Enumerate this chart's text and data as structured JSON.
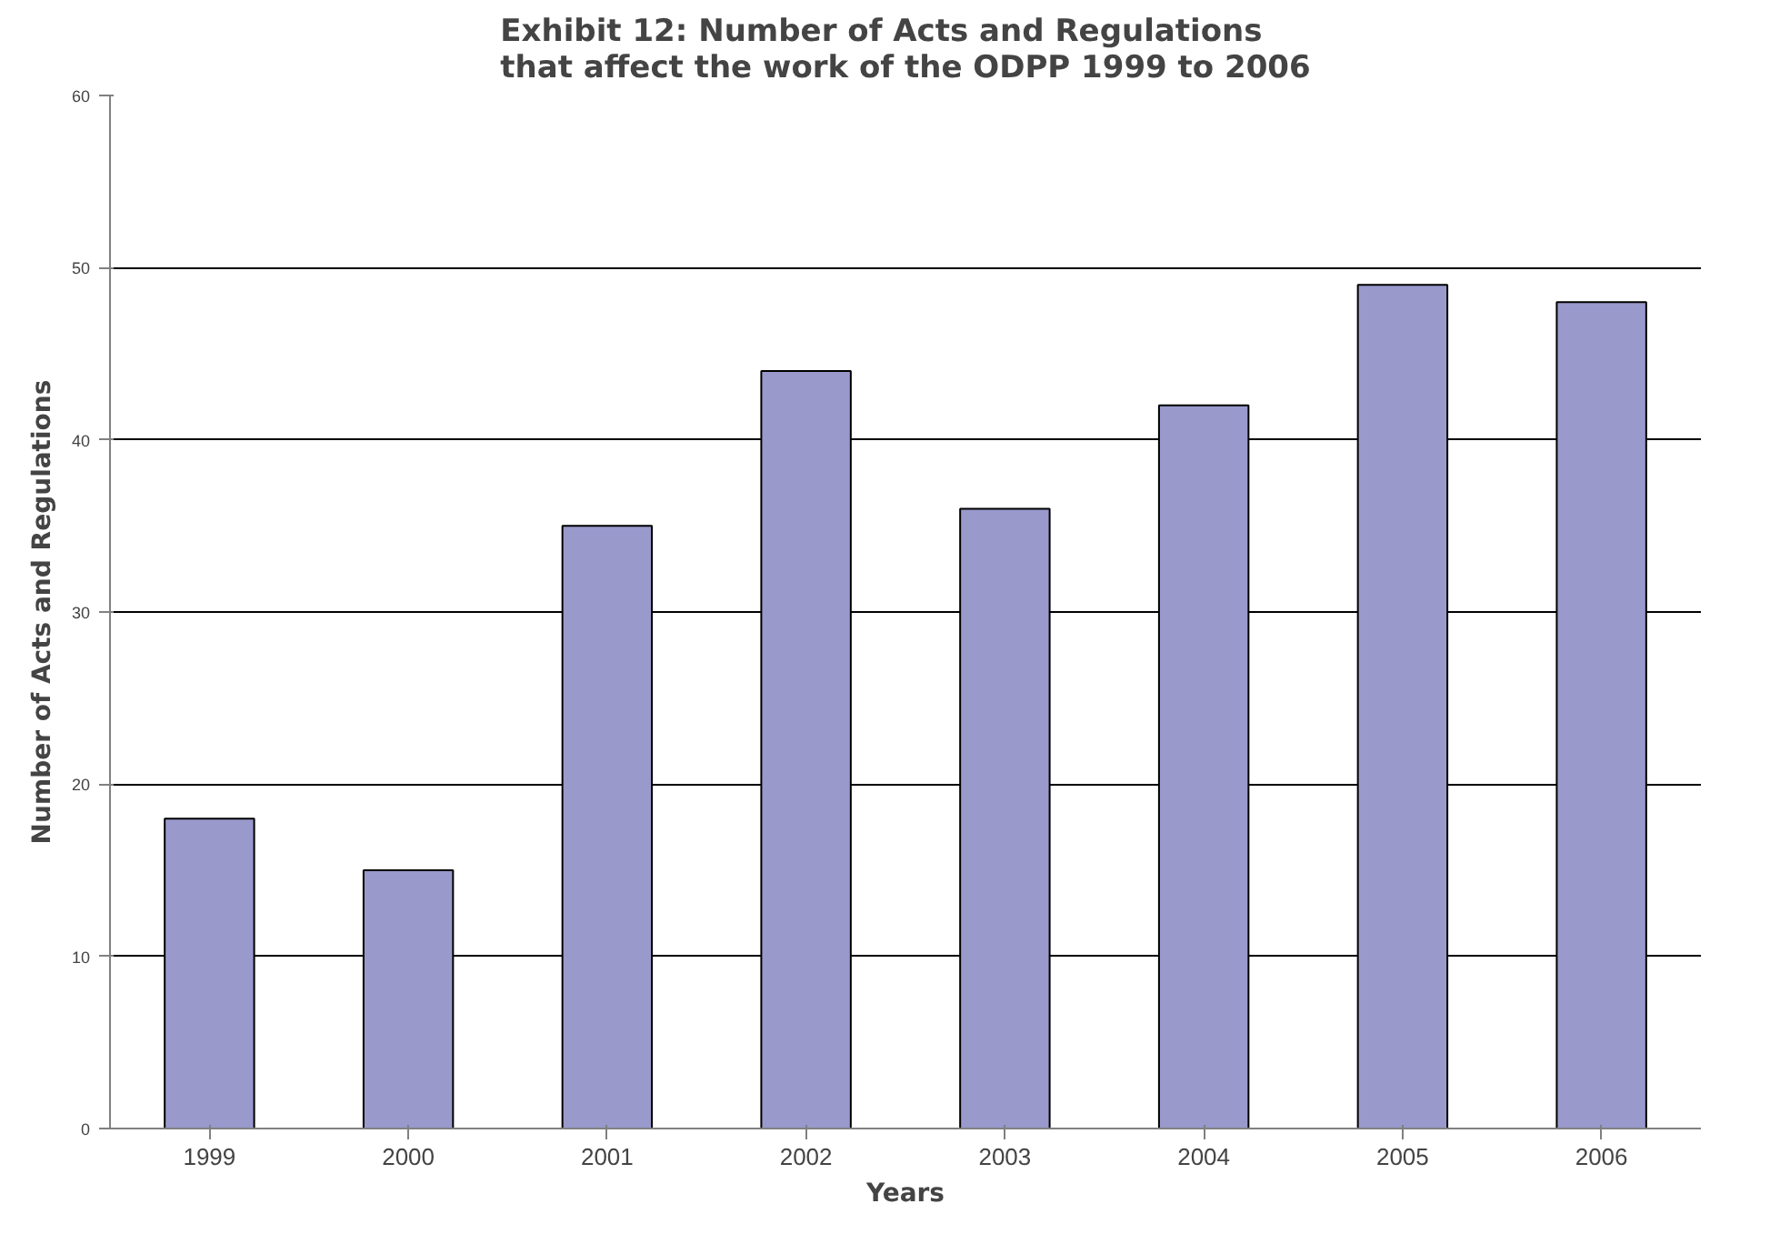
{
  "chart_data": {
    "type": "bar",
    "title": "Exhibit 12: Number of Acts and Regulations that affect the work of the ODPP 1999 to 2006",
    "xlabel": "Years",
    "ylabel": "Number of Acts and Regulations",
    "categories": [
      "1999",
      "2000",
      "2001",
      "2002",
      "2003",
      "2004",
      "2005",
      "2006"
    ],
    "values": [
      18,
      15,
      35,
      44,
      36,
      42,
      49,
      48
    ],
    "color": "#9999cc",
    "ylim": [
      0,
      60
    ],
    "yticks": [
      0,
      10,
      20,
      30,
      40,
      50,
      60
    ],
    "grid": "y"
  }
}
